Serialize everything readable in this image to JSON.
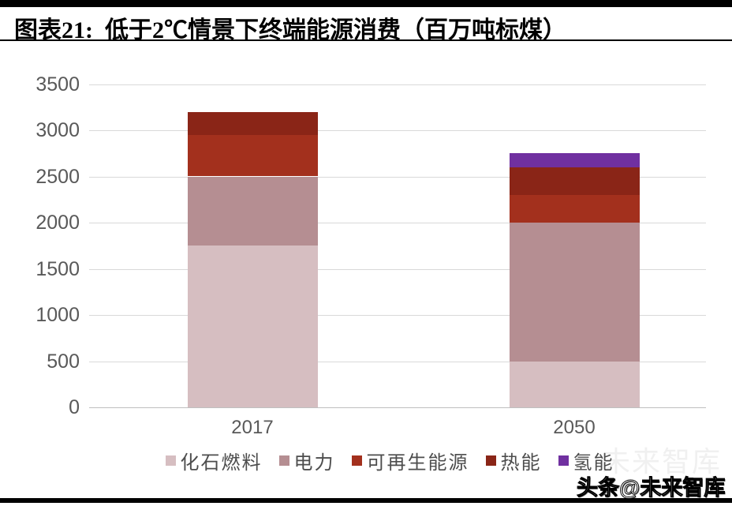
{
  "header": {
    "title": "图表21:  低于2℃情景下终端能源消费（百万吨标煤）"
  },
  "watermark": {
    "bottom_right": "头条@未来智库",
    "faint": "未来智库"
  },
  "chart_data": {
    "type": "bar",
    "stacked": true,
    "categories": [
      "2017",
      "2050"
    ],
    "series": [
      {
        "name": "化石燃料",
        "color": "#d6bec1",
        "values": [
          1750,
          500
        ]
      },
      {
        "name": "电力",
        "color": "#b58e92",
        "values": [
          750,
          1500
        ]
      },
      {
        "name": "可再生能源",
        "color": "#a3301d",
        "values": [
          450,
          300
        ]
      },
      {
        "name": "热能",
        "color": "#8a2517",
        "values": [
          250,
          300
        ]
      },
      {
        "name": "氢能",
        "color": "#7030a0",
        "values": [
          0,
          150
        ]
      }
    ],
    "title": "低于2℃情景下终端能源消费（百万吨标煤）",
    "xlabel": "",
    "ylabel": "",
    "ylim": [
      0,
      3500
    ],
    "yticks": [
      0,
      500,
      1000,
      1500,
      2000,
      2500,
      3000,
      3500
    ],
    "grid": true,
    "legend_position": "bottom"
  }
}
